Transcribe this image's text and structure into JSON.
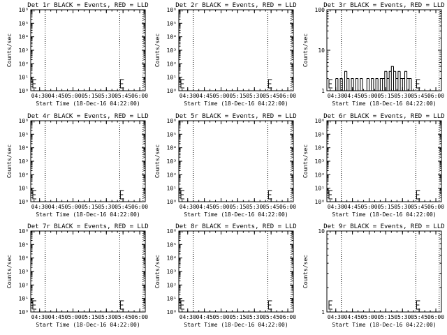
{
  "chart_data": [
    {
      "type": "line",
      "title": "Det 1r BLACK = Events, RED = LLD",
      "ylabel": "Counts/sec",
      "xlabel": "Start Time (18-Dec-16 04:22:00)",
      "y_scale": "log",
      "ylim": [
        1,
        1000000
      ],
      "y_tick_labels": [
        "10⁰",
        "10¹",
        "10²",
        "10³",
        "10⁴",
        "10⁵",
        "10⁶"
      ],
      "x_tick_labels": [
        "04:30",
        "04:45",
        "05:00",
        "05:15",
        "05:30",
        "05:45",
        "06:00"
      ],
      "xlim": [
        "04:22",
        "06:05"
      ],
      "vlines": [
        "04:35",
        "05:42",
        "06:03"
      ],
      "series": [
        {
          "x": [],
          "y": []
        }
      ]
    },
    {
      "type": "line",
      "title": "Det 2r BLACK = Events, RED = LLD",
      "ylabel": "Counts/sec",
      "xlabel": "Start Time (18-Dec-16 04:22:00)",
      "y_scale": "log",
      "ylim": [
        1,
        1000000
      ],
      "y_tick_labels": [
        "10⁰",
        "10¹",
        "10²",
        "10³",
        "10⁴",
        "10⁵",
        "10⁶"
      ],
      "x_tick_labels": [
        "04:30",
        "04:45",
        "05:00",
        "05:15",
        "05:30",
        "05:45",
        "06:00"
      ],
      "xlim": [
        "04:22",
        "06:05"
      ],
      "vlines": [
        "04:35",
        "05:42",
        "06:03"
      ],
      "series": [
        {
          "x": [],
          "y": []
        }
      ]
    },
    {
      "type": "line",
      "title": "Det 3r BLACK = Events, RED = LLD",
      "ylabel": "Counts/sec",
      "xlabel": "Start Time (18-Dec-16 04:22:00)",
      "y_scale": "log",
      "ylim": [
        1,
        100
      ],
      "y_tick_labels": [
        "1",
        "10",
        "100"
      ],
      "x_tick_labels": [
        "04:30",
        "04:45",
        "05:00",
        "05:15",
        "05:30",
        "05:45",
        "06:00"
      ],
      "xlim": [
        "04:22",
        "06:05"
      ],
      "vlines": [
        "04:35",
        "05:42",
        "06:03"
      ],
      "series": [
        {
          "x": [
            "04:30",
            "04:32",
            "04:34",
            "04:36",
            "04:38",
            "04:40",
            "04:42",
            "04:44",
            "04:46",
            "04:48",
            "04:50",
            "04:52",
            "04:54",
            "04:56",
            "04:58",
            "05:00",
            "05:02",
            "05:04",
            "05:06",
            "05:08",
            "05:10",
            "05:12",
            "05:14",
            "05:16",
            "05:18",
            "05:20",
            "05:22",
            "05:24",
            "05:26",
            "05:28",
            "05:30",
            "05:32",
            "05:34",
            "05:36",
            "05:38",
            "05:40"
          ],
          "y": [
            2,
            1,
            2,
            1,
            3,
            2,
            1,
            2,
            1,
            2,
            1,
            2,
            1,
            1,
            2,
            1,
            2,
            1,
            2,
            1,
            2,
            2,
            3,
            2,
            3,
            4,
            3,
            2,
            3,
            2,
            2,
            3,
            2,
            2,
            1,
            1
          ]
        }
      ]
    },
    {
      "type": "line",
      "title": "Det 4r BLACK = Events, RED = LLD",
      "ylabel": "Counts/sec",
      "xlabel": "Start Time (18-Dec-16 04:22:00)",
      "y_scale": "log",
      "ylim": [
        1,
        1000000
      ],
      "y_tick_labels": [
        "10⁰",
        "10¹",
        "10²",
        "10³",
        "10⁴",
        "10⁵",
        "10⁶"
      ],
      "x_tick_labels": [
        "04:30",
        "04:45",
        "05:00",
        "05:15",
        "05:30",
        "05:45",
        "06:00"
      ],
      "xlim": [
        "04:22",
        "06:05"
      ],
      "vlines": [
        "04:35",
        "05:42",
        "06:03"
      ],
      "series": [
        {
          "x": [],
          "y": []
        }
      ]
    },
    {
      "type": "line",
      "title": "Det 5r BLACK = Events, RED = LLD",
      "ylabel": "Counts/sec",
      "xlabel": "Start Time (18-Dec-16 04:22:00)",
      "y_scale": "log",
      "ylim": [
        1,
        1000000
      ],
      "y_tick_labels": [
        "10⁰",
        "10¹",
        "10²",
        "10³",
        "10⁴",
        "10⁵",
        "10⁶"
      ],
      "x_tick_labels": [
        "04:30",
        "04:45",
        "05:00",
        "05:15",
        "05:30",
        "05:45",
        "06:00"
      ],
      "xlim": [
        "04:22",
        "06:05"
      ],
      "vlines": [
        "04:35",
        "05:42",
        "06:03"
      ],
      "series": [
        {
          "x": [],
          "y": []
        }
      ]
    },
    {
      "type": "line",
      "title": "Det 6r BLACK = Events, RED = LLD",
      "ylabel": "Counts/sec",
      "xlabel": "Start Time (18-Dec-16 04:22:00)",
      "y_scale": "log",
      "ylim": [
        1,
        1000000
      ],
      "y_tick_labels": [
        "10⁰",
        "10¹",
        "10²",
        "10³",
        "10⁴",
        "10⁵",
        "10⁶"
      ],
      "x_tick_labels": [
        "04:30",
        "04:45",
        "05:00",
        "05:15",
        "05:30",
        "05:45",
        "06:00"
      ],
      "xlim": [
        "04:22",
        "06:05"
      ],
      "vlines": [
        "04:35",
        "05:42",
        "06:03"
      ],
      "series": [
        {
          "x": [],
          "y": []
        }
      ]
    },
    {
      "type": "line",
      "title": "Det 7r BLACK = Events, RED = LLD",
      "ylabel": "Counts/sec",
      "xlabel": "Start Time (18-Dec-16 04:22:00)",
      "y_scale": "log",
      "ylim": [
        1,
        1000000
      ],
      "y_tick_labels": [
        "10⁰",
        "10¹",
        "10²",
        "10³",
        "10⁴",
        "10⁵",
        "10⁶"
      ],
      "x_tick_labels": [
        "04:30",
        "04:45",
        "05:00",
        "05:15",
        "05:30",
        "05:45",
        "06:00"
      ],
      "xlim": [
        "04:22",
        "06:05"
      ],
      "vlines": [
        "04:35",
        "05:42",
        "06:03"
      ],
      "series": [
        {
          "x": [],
          "y": []
        }
      ]
    },
    {
      "type": "line",
      "title": "Det 8r BLACK = Events, RED = LLD",
      "ylabel": "Counts/sec",
      "xlabel": "Start Time (18-Dec-16 04:22:00)",
      "y_scale": "log",
      "ylim": [
        1,
        1000000
      ],
      "y_tick_labels": [
        "10⁰",
        "10¹",
        "10²",
        "10³",
        "10⁴",
        "10⁵",
        "10⁶"
      ],
      "x_tick_labels": [
        "04:30",
        "04:45",
        "05:00",
        "05:15",
        "05:30",
        "05:45",
        "06:00"
      ],
      "xlim": [
        "04:22",
        "06:05"
      ],
      "vlines": [
        "04:35",
        "05:42",
        "06:03"
      ],
      "series": [
        {
          "x": [],
          "y": []
        }
      ]
    },
    {
      "type": "line",
      "title": "Det 9r BLACK = Events, RED = LLD",
      "ylabel": "Counts/sec",
      "xlabel": "Start Time (18-Dec-16 04:22:00)",
      "y_scale": "log",
      "ylim": [
        1,
        10
      ],
      "y_tick_labels": [
        "1",
        "10"
      ],
      "x_tick_labels": [
        "04:30",
        "04:45",
        "05:00",
        "05:15",
        "05:30",
        "05:45",
        "06:00"
      ],
      "xlim": [
        "04:22",
        "06:05"
      ],
      "vlines": [
        "04:35",
        "05:42",
        "06:03"
      ],
      "series": [
        {
          "x": [],
          "y": []
        }
      ]
    }
  ]
}
